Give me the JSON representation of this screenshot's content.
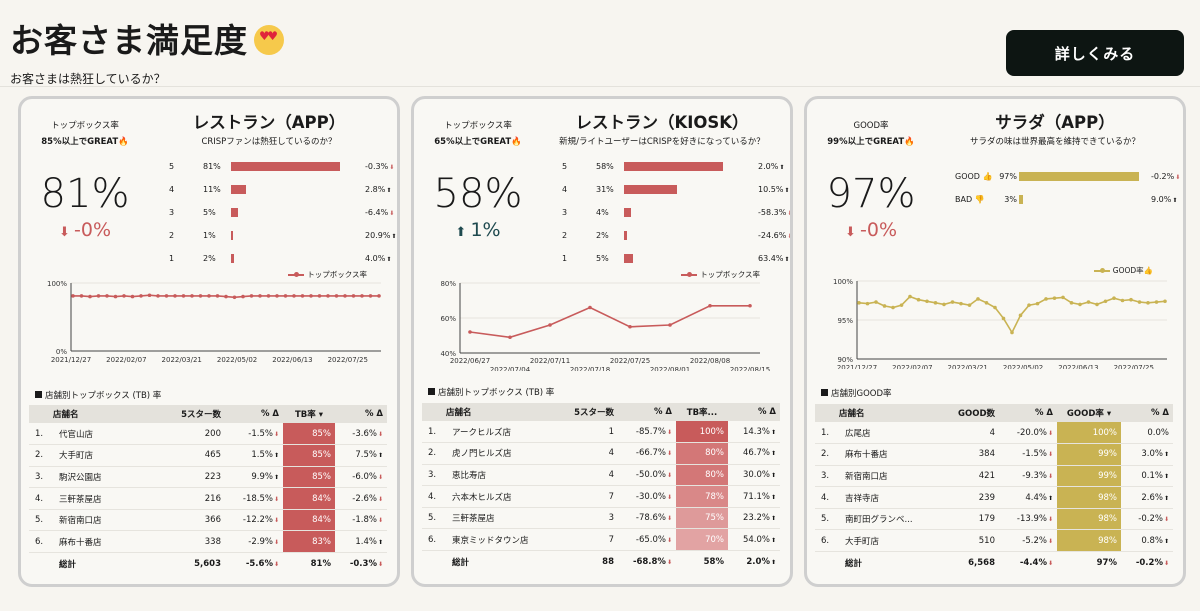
{
  "header": {
    "title": "お客さま満足度",
    "title_emoji": "heart-eyes-emoji",
    "subtitle": "お客さまは熱狂しているか？",
    "detail_button": "詳しくみる"
  },
  "colors": {
    "red": "#c85b5b",
    "red_light": "#e2a3a3",
    "gold": "#c9b353",
    "teal": "#1f4a4f"
  },
  "cards": [
    {
      "kpi_label1": "トップボックス率",
      "kpi_label2": "85%以上でGREAT🔥",
      "kpi_value": "81%",
      "kpi_delta": "-0%",
      "kpi_direction": "down",
      "title": "レストラン（APP）",
      "subtitle": "CRISPファンは熱狂しているのか？",
      "distribution": [
        {
          "label": "5",
          "pct": "81%",
          "value": 81,
          "delta": "-0.3%",
          "dir": "neg"
        },
        {
          "label": "4",
          "pct": "11%",
          "value": 11,
          "delta": "2.8%",
          "dir": "pos"
        },
        {
          "label": "3",
          "pct": "5%",
          "value": 5,
          "delta": "-6.4%",
          "dir": "neg"
        },
        {
          "label": "2",
          "pct": "1%",
          "value": 1,
          "delta": "20.9%",
          "dir": "pos"
        },
        {
          "label": "1",
          "pct": "2%",
          "value": 2,
          "delta": "4.0%",
          "dir": "pos"
        }
      ],
      "chart_legend": "トップボックス率",
      "section_title": "店舗別トップボックス (TB) 率",
      "table_headers": [
        "店舗名",
        "5スター数",
        "% Δ",
        "TB率 ▾",
        "% Δ"
      ],
      "rows": [
        {
          "idx": "1.",
          "name": "代官山店",
          "count": "200",
          "d1": "-1.5%",
          "d1dir": "neg",
          "rate": "85%",
          "rate_val": 85,
          "d2": "-3.6%",
          "d2dir": "neg"
        },
        {
          "idx": "2.",
          "name": "大手町店",
          "count": "465",
          "d1": "1.5%",
          "d1dir": "pos",
          "rate": "85%",
          "rate_val": 85,
          "d2": "7.5%",
          "d2dir": "pos"
        },
        {
          "idx": "3.",
          "name": "駒沢公園店",
          "count": "223",
          "d1": "9.9%",
          "d1dir": "pos",
          "rate": "85%",
          "rate_val": 85,
          "d2": "-6.0%",
          "d2dir": "neg"
        },
        {
          "idx": "4.",
          "name": "三軒茶屋店",
          "count": "216",
          "d1": "-18.5%",
          "d1dir": "neg",
          "rate": "84%",
          "rate_val": 84,
          "d2": "-2.6%",
          "d2dir": "neg"
        },
        {
          "idx": "5.",
          "name": "新宿南口店",
          "count": "366",
          "d1": "-12.2%",
          "d1dir": "neg",
          "rate": "84%",
          "rate_val": 84,
          "d2": "-1.8%",
          "d2dir": "neg"
        },
        {
          "idx": "6.",
          "name": "麻布十番店",
          "count": "338",
          "d1": "-2.9%",
          "d1dir": "neg",
          "rate": "83%",
          "rate_val": 83,
          "d2": "1.4%",
          "d2dir": "pos"
        }
      ],
      "total": {
        "label": "総計",
        "count": "5,603",
        "d1": "-5.6%",
        "d1dir": "neg",
        "rate": "81%",
        "d2": "-0.3%",
        "d2dir": "neg"
      }
    },
    {
      "kpi_label1": "トップボックス率",
      "kpi_label2": "65%以上でGREAT🔥",
      "kpi_value": "58%",
      "kpi_delta": "1%",
      "kpi_direction": "up",
      "title": "レストラン（KIOSK）",
      "subtitle": "新規/ライトユーザーはCRISPを好きになっているか？",
      "distribution": [
        {
          "label": "5",
          "pct": "58%",
          "value": 58,
          "delta": "2.0%",
          "dir": "pos"
        },
        {
          "label": "4",
          "pct": "31%",
          "value": 31,
          "delta": "10.5%",
          "dir": "pos"
        },
        {
          "label": "3",
          "pct": "4%",
          "value": 4,
          "delta": "-58.3%",
          "dir": "neg"
        },
        {
          "label": "2",
          "pct": "2%",
          "value": 2,
          "delta": "-24.6%",
          "dir": "neg"
        },
        {
          "label": "1",
          "pct": "5%",
          "value": 5,
          "delta": "63.4%",
          "dir": "pos"
        }
      ],
      "chart_legend": "トップボックス率",
      "section_title": "店舗別トップボックス (TB) 率",
      "table_headers": [
        "店舗名",
        "5スター数",
        "% Δ",
        "TB率...",
        "% Δ"
      ],
      "rows": [
        {
          "idx": "1.",
          "name": "アークヒルズ店",
          "count": "1",
          "d1": "-85.7%",
          "d1dir": "neg",
          "rate": "100%",
          "rate_val": 100,
          "d2": "14.3%",
          "d2dir": "pos"
        },
        {
          "idx": "2.",
          "name": "虎ノ門ヒルズ店",
          "count": "4",
          "d1": "-66.7%",
          "d1dir": "neg",
          "rate": "80%",
          "rate_val": 80,
          "d2": "46.7%",
          "d2dir": "pos"
        },
        {
          "idx": "3.",
          "name": "恵比寿店",
          "count": "4",
          "d1": "-50.0%",
          "d1dir": "neg",
          "rate": "80%",
          "rate_val": 80,
          "d2": "30.0%",
          "d2dir": "pos"
        },
        {
          "idx": "4.",
          "name": "六本木ヒルズ店",
          "count": "7",
          "d1": "-30.0%",
          "d1dir": "neg",
          "rate": "78%",
          "rate_val": 78,
          "d2": "71.1%",
          "d2dir": "pos"
        },
        {
          "idx": "5.",
          "name": "三軒茶屋店",
          "count": "3",
          "d1": "-78.6%",
          "d1dir": "neg",
          "rate": "75%",
          "rate_val": 75,
          "d2": "23.2%",
          "d2dir": "pos"
        },
        {
          "idx": "6.",
          "name": "東京ミッドタウン店",
          "count": "7",
          "d1": "-65.0%",
          "d1dir": "neg",
          "rate": "70%",
          "rate_val": 70,
          "d2": "54.0%",
          "d2dir": "pos"
        }
      ],
      "total": {
        "label": "総計",
        "count": "88",
        "d1": "-68.8%",
        "d1dir": "neg",
        "rate": "58%",
        "d2": "2.0%",
        "d2dir": "pos"
      }
    },
    {
      "kpi_label1": "GOOD率",
      "kpi_label2": "99%以上でGREAT🔥",
      "kpi_value": "97%",
      "kpi_delta": "-0%",
      "kpi_direction": "down",
      "title": "サラダ（APP）",
      "subtitle": "サラダの味は世界最高を維持できているか？",
      "distribution": [
        {
          "label": "GOOD 👍",
          "pct": "97%",
          "value": 97,
          "delta": "-0.2%",
          "dir": "neg"
        },
        {
          "label": "BAD 👎",
          "pct": "3%",
          "value": 3,
          "delta": "9.0%",
          "dir": "pos"
        }
      ],
      "chart_legend": "GOOD率👍",
      "section_title": "店舗別GOOD率",
      "table_headers": [
        "店舗名",
        "GOOD数",
        "% Δ",
        "GOOD率 ▾",
        "% Δ"
      ],
      "rows": [
        {
          "idx": "1.",
          "name": "広尾店",
          "count": "4",
          "d1": "-20.0%",
          "d1dir": "neg",
          "rate": "100%",
          "rate_val": 100,
          "d2": "0.0%",
          "d2dir": "none"
        },
        {
          "idx": "2.",
          "name": "麻布十番店",
          "count": "384",
          "d1": "-1.5%",
          "d1dir": "neg",
          "rate": "99%",
          "rate_val": 99,
          "d2": "3.0%",
          "d2dir": "pos"
        },
        {
          "idx": "3.",
          "name": "新宿南口店",
          "count": "421",
          "d1": "-9.3%",
          "d1dir": "neg",
          "rate": "99%",
          "rate_val": 99,
          "d2": "0.1%",
          "d2dir": "pos"
        },
        {
          "idx": "4.",
          "name": "吉祥寺店",
          "count": "239",
          "d1": "4.4%",
          "d1dir": "pos",
          "rate": "98%",
          "rate_val": 98,
          "d2": "2.6%",
          "d2dir": "pos"
        },
        {
          "idx": "5.",
          "name": "南町田グランベ...",
          "count": "179",
          "d1": "-13.9%",
          "d1dir": "neg",
          "rate": "98%",
          "rate_val": 98,
          "d2": "-0.2%",
          "d2dir": "neg"
        },
        {
          "idx": "6.",
          "name": "大手町店",
          "count": "510",
          "d1": "-5.2%",
          "d1dir": "neg",
          "rate": "98%",
          "rate_val": 98,
          "d2": "0.8%",
          "d2dir": "pos"
        }
      ],
      "total": {
        "label": "総計",
        "count": "6,568",
        "d1": "-4.4%",
        "d1dir": "neg",
        "rate": "97%",
        "d2": "-0.2%",
        "d2dir": "neg"
      }
    }
  ],
  "chart_data": [
    {
      "type": "line",
      "series": [
        {
          "name": "トップボックス率",
          "values": [
            81,
            81,
            80,
            81,
            81,
            80,
            81,
            80,
            81,
            82,
            81,
            81,
            81,
            81,
            81,
            81,
            81,
            81,
            80,
            79,
            80,
            81,
            81,
            81,
            81,
            81,
            81,
            81,
            81,
            81,
            81,
            81,
            81,
            81,
            81,
            81,
            81
          ]
        }
      ],
      "x_tick_labels": [
        "2021/12/27",
        "2022/02/07",
        "2022/03/21",
        "2022/05/02",
        "2022/06/13",
        "2022/07/25"
      ],
      "y_tick_labels": [
        "100%",
        "0%"
      ],
      "ylim": [
        0,
        100
      ]
    },
    {
      "type": "line",
      "series": [
        {
          "name": "トップボックス率",
          "values": [
            52,
            49,
            56,
            66,
            55,
            56,
            67,
            67
          ]
        }
      ],
      "x": [
        "2022/06/27",
        "2022/07/04",
        "2022/07/11",
        "2022/07/18",
        "2022/07/25",
        "2022/08/01",
        "2022/08/08",
        "2022/08/15"
      ],
      "x_tick_labels": [
        "2022/06/27",
        "2022/07/04",
        "2022/07/11",
        "2022/07/18",
        "2022/07/25",
        "2022/08/01",
        "2022/08/08",
        "2022/08/15"
      ],
      "y_tick_labels": [
        "80%",
        "60%",
        "40%"
      ],
      "ylim": [
        40,
        80
      ]
    },
    {
      "type": "line",
      "series": [
        {
          "name": "GOOD率👍",
          "values": [
            97.2,
            97.1,
            97.3,
            96.8,
            96.6,
            96.9,
            98.0,
            97.6,
            97.4,
            97.2,
            97.0,
            97.3,
            97.1,
            96.9,
            97.7,
            97.2,
            96.6,
            95.2,
            93.4,
            95.6,
            96.9,
            97.1,
            97.7,
            97.8,
            97.9,
            97.2,
            97.0,
            97.3,
            97.0,
            97.4,
            97.8,
            97.5,
            97.6,
            97.3,
            97.2,
            97.3,
            97.4
          ]
        }
      ],
      "x_tick_labels": [
        "2021/12/27",
        "2022/02/07",
        "2022/03/21",
        "2022/05/02",
        "2022/06/13",
        "2022/07/25"
      ],
      "y_tick_labels": [
        "100%",
        "95%",
        "90%"
      ],
      "ylim": [
        90,
        100
      ]
    }
  ]
}
